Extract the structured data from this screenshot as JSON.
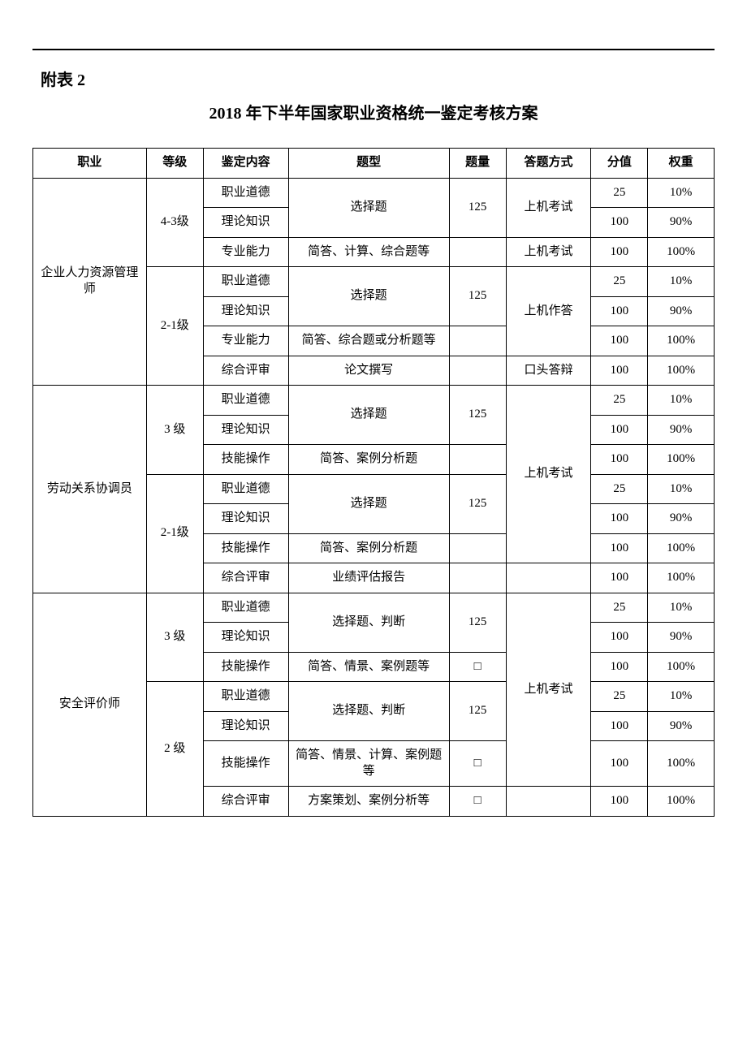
{
  "appendix_label": "附表 2",
  "title": "2018 年下半年国家职业资格统一鉴定考核方案",
  "headers": {
    "occupation": "职业",
    "level": "等级",
    "content": "鉴定内容",
    "qtype": "题型",
    "qcount": "题量",
    "method": "答题方式",
    "score": "分值",
    "weight": "权重"
  },
  "occupations": [
    {
      "name": "企业人力资源管理师",
      "levels": [
        {
          "level": "4-3级",
          "rows": [
            {
              "content": "职业道德",
              "qtype": "选择题",
              "qcount": "125",
              "method": "上机考试",
              "score": "25",
              "weight": "10%"
            },
            {
              "content": "理论知识",
              "score": "100",
              "weight": "90%"
            },
            {
              "content": "专业能力",
              "qtype": "简答、计算、综合题等",
              "qcount": "",
              "method": "上机考试",
              "score": "100",
              "weight": "100%"
            }
          ]
        },
        {
          "level": "2-1级",
          "rows": [
            {
              "content": "职业道德",
              "qtype": "选择题",
              "qcount": "125",
              "method": "上机作答",
              "score": "25",
              "weight": "10%"
            },
            {
              "content": "理论知识",
              "score": "100",
              "weight": "90%"
            },
            {
              "content": "专业能力",
              "qtype": "简答、综合题或分析题等",
              "qcount": "",
              "score": "100",
              "weight": "100%"
            },
            {
              "content": "综合评审",
              "qtype": "论文撰写",
              "qcount": "",
              "method": "口头答辩",
              "score": "100",
              "weight": "100%"
            }
          ]
        }
      ]
    },
    {
      "name": "劳动关系协调员",
      "levels": [
        {
          "level": "3 级",
          "rows": [
            {
              "content": "职业道德",
              "qtype": "选择题",
              "qcount": "125",
              "method": "上机考试",
              "score": "25",
              "weight": "10%"
            },
            {
              "content": "理论知识",
              "score": "100",
              "weight": "90%"
            },
            {
              "content": "技能操作",
              "qtype": "简答、案例分析题",
              "qcount": "",
              "score": "100",
              "weight": "100%"
            }
          ]
        },
        {
          "level": "2-1级",
          "rows": [
            {
              "content": "职业道德",
              "qtype": "选择题",
              "qcount": "125",
              "score": "25",
              "weight": "10%"
            },
            {
              "content": "理论知识",
              "score": "100",
              "weight": "90%"
            },
            {
              "content": "技能操作",
              "qtype": "简答、案例分析题",
              "qcount": "",
              "score": "100",
              "weight": "100%"
            },
            {
              "content": "综合评审",
              "qtype": "业绩评估报告",
              "qcount": "",
              "method": "",
              "score": "100",
              "weight": "100%"
            }
          ]
        }
      ]
    },
    {
      "name": "安全评价师",
      "levels": [
        {
          "level": "3 级",
          "rows": [
            {
              "content": "职业道德",
              "qtype": "选择题、判断",
              "qcount": "125",
              "method": "上机考试",
              "score": "25",
              "weight": "10%"
            },
            {
              "content": "理论知识",
              "score": "100",
              "weight": "90%"
            },
            {
              "content": "技能操作",
              "qtype": "简答、情景、案例题等",
              "qcount": "□",
              "score": "100",
              "weight": "100%"
            }
          ]
        },
        {
          "level": "2 级",
          "rows": [
            {
              "content": "职业道德",
              "qtype": "选择题、判断",
              "qcount": "125",
              "score": "25",
              "weight": "10%"
            },
            {
              "content": "理论知识",
              "score": "100",
              "weight": "90%"
            },
            {
              "content": "技能操作",
              "qtype": "简答、情景、计算、案例题等",
              "qcount": "□",
              "score": "100",
              "weight": "100%"
            },
            {
              "content": "综合评审",
              "qtype": "方案策划、案例分析等",
              "qcount": "□",
              "method": "",
              "score": "100",
              "weight": "100%"
            }
          ]
        }
      ]
    }
  ]
}
